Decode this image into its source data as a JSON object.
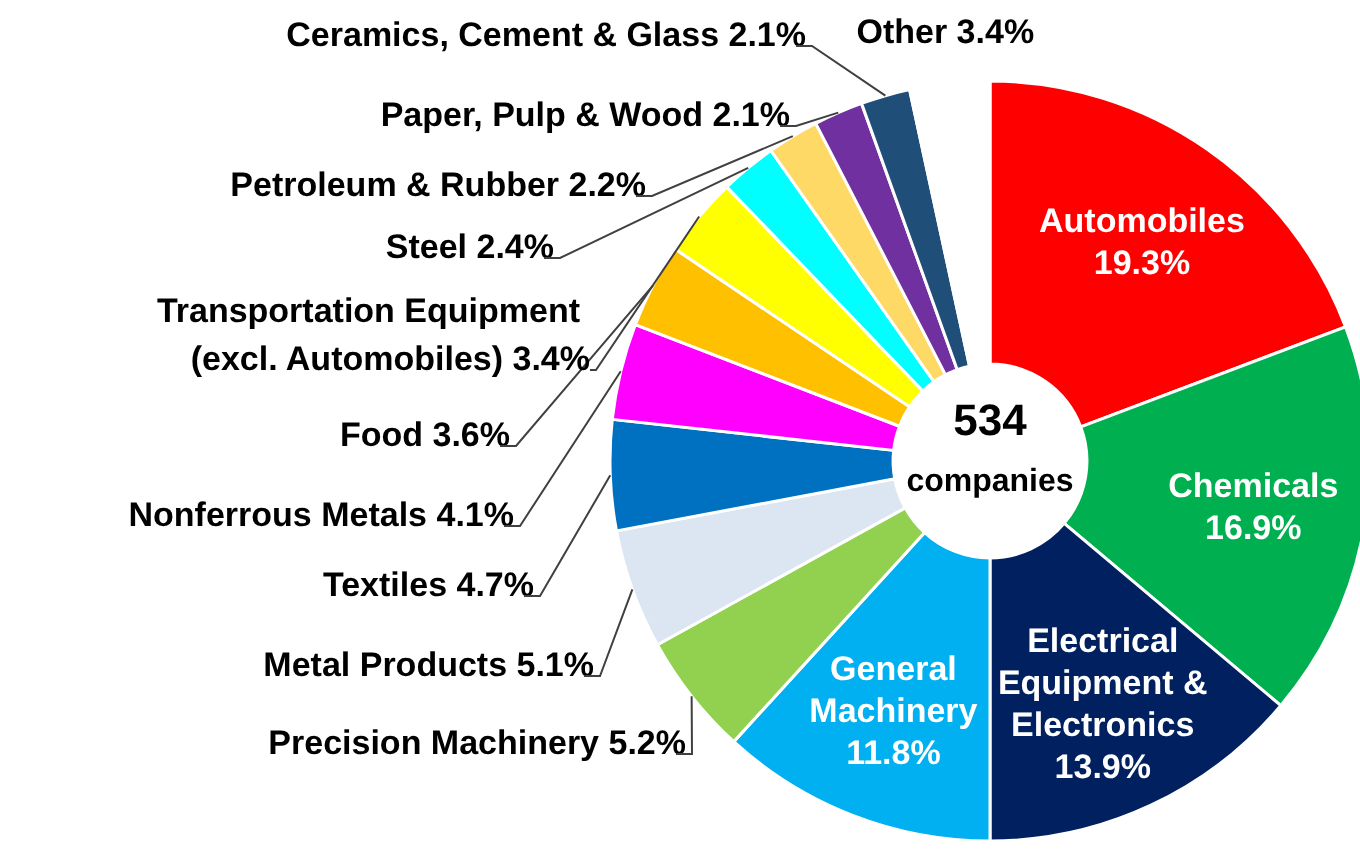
{
  "chart_data": {
    "type": "donut",
    "categories": [
      "Automobiles",
      "Chemicals",
      "Electrical Equipment & Electronics",
      "General Machinery",
      "Precision Machinery",
      "Metal Products",
      "Textiles",
      "Nonferrous Metals",
      "Food",
      "Transportation Equipment (excl. Automobiles)",
      "Steel",
      "Petroleum & Rubber",
      "Paper, Pulp & Wood",
      "Ceramics, Cement & Glass",
      "Other"
    ],
    "values": [
      19.3,
      16.9,
      13.9,
      11.8,
      5.2,
      5.1,
      4.7,
      4.1,
      3.6,
      3.4,
      2.4,
      2.2,
      2.1,
      2.1,
      3.4
    ],
    "value_labels": [
      "19.3%",
      "16.9%",
      "13.9%",
      "11.8%",
      "5.2%",
      "5.1%",
      "4.7%",
      "4.1%",
      "3.6%",
      "3.4%",
      "2.4%",
      "2.2%",
      "2.1%",
      "2.1%",
      "3.4%"
    ],
    "colors": [
      "#ff0000",
      "#00b050",
      "#002060",
      "#00b0f0",
      "#92d050",
      "#dce6f2",
      "#0070c0",
      "#ff00ff",
      "#ffc000",
      "#ffff00",
      "#00ffff",
      "#ffd966",
      "#7030a0",
      "#1f4e79",
      "#ffffff"
    ],
    "annotations": [
      "534",
      "companies"
    ],
    "legend": false
  }
}
